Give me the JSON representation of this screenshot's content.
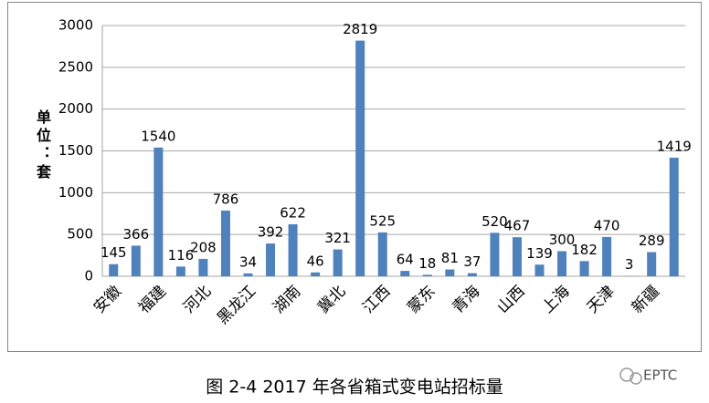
{
  "chart_data": {
    "type": "bar",
    "title": "图 2-4 2017 年各省箱式变电站招标量",
    "y_axis_label": "单位：套",
    "watermark": "EPTC",
    "categories": [
      "安徽",
      null,
      "福建",
      null,
      "河北",
      null,
      "黑龙江",
      null,
      "湖南",
      null,
      "冀北",
      null,
      "江西",
      null,
      "蒙东",
      null,
      "青海",
      null,
      "山西",
      null,
      "上海",
      null,
      "天津",
      null,
      "新疆",
      null
    ],
    "values": [
      145,
      366,
      1540,
      116,
      208,
      786,
      34,
      392,
      622,
      46,
      321,
      2819,
      525,
      64,
      18,
      81,
      37,
      520,
      467,
      139,
      300,
      182,
      470,
      3,
      289,
      1419
    ],
    "color": "#4f81bd",
    "ylim": [
      0,
      3000
    ],
    "yticks": [
      0,
      500,
      1000,
      1500,
      2000,
      2500,
      3000
    ],
    "grid": true
  }
}
